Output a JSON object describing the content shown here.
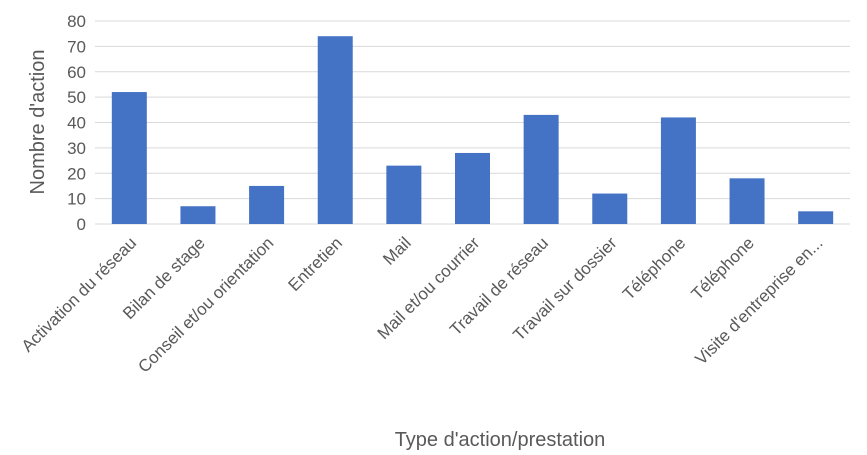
{
  "chart_data": {
    "type": "bar",
    "categories": [
      "Activation du réseau",
      "Bilan de stage",
      "Conseil et/ou orientation",
      "Entretien",
      "Mail",
      "Mail et/ou courrier",
      "Travail de réseau",
      "Travail sur dossier",
      "Téléphone",
      "Téléphone",
      "Visite d'entreprise  en..."
    ],
    "values": [
      52,
      7,
      15,
      74,
      23,
      28,
      43,
      12,
      42,
      18,
      5
    ],
    "xlabel": "Type d'action/prestation",
    "ylabel": "Nombre d'action",
    "ylim": [
      0,
      80
    ],
    "yticks": [
      0,
      10,
      20,
      30,
      40,
      50,
      60,
      70,
      80
    ],
    "grid": true,
    "legend": "none",
    "bar_color": "#4472c4"
  }
}
